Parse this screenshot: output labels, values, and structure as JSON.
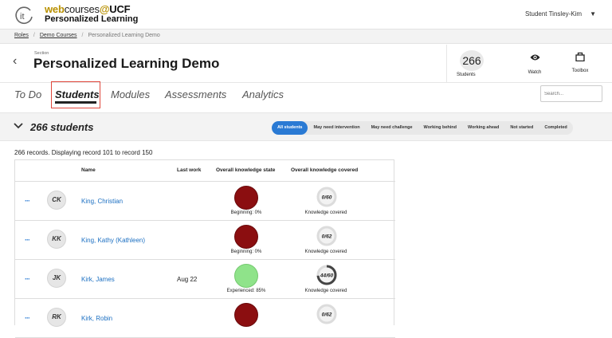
{
  "topbar": {
    "brand_web": "web",
    "brand_courses": "courses",
    "brand_at": "@",
    "brand_ucf": "UCF",
    "brand_sub": "Personalized Learning",
    "user": "Student Tinsley-Kim"
  },
  "breadcrumb": [
    "Roles",
    "Demo Courses",
    "Personalized Learning Demo"
  ],
  "header": {
    "section_label": "Section",
    "title": "Personalized Learning Demo",
    "students_count": "266",
    "students_label": "Students",
    "watch_label": "Watch",
    "toolbox_label": "Toolbox"
  },
  "tabs": [
    {
      "label": "To Do"
    },
    {
      "label": "Students"
    },
    {
      "label": "Modules"
    },
    {
      "label": "Assessments"
    },
    {
      "label": "Analytics"
    }
  ],
  "search": {
    "placeholder": "Search..."
  },
  "student_bar": {
    "title": "266 students",
    "filters": [
      "All students",
      "May need intervention",
      "May need challenge",
      "Working behind",
      "Working ahead",
      "Not started",
      "Completed"
    ]
  },
  "records_text": "266 records. Displaying record 101 to record 150",
  "table": {
    "headers": [
      "Name",
      "Last work",
      "Overall knowledge state",
      "Overall knowledge covered"
    ],
    "rows": [
      {
        "initials": "CK",
        "name": "King, Christian",
        "last_work": "",
        "state_label": "Beginning: 0%",
        "state_color": "#8b0e10",
        "covered": "0/60",
        "covered_fraction": 0,
        "covered_label": "Knowledge covered"
      },
      {
        "initials": "KK",
        "name": "King, Kathy (Kathleen)",
        "last_work": "",
        "state_label": "Beginning: 0%",
        "state_color": "#8b0e10",
        "covered": "0/62",
        "covered_fraction": 0,
        "covered_label": "Knowledge covered"
      },
      {
        "initials": "JK",
        "name": "Kirk, James",
        "last_work": "Aug 22",
        "state_label": "Experienced: 85%",
        "state_color": "#8fe38a",
        "covered": "44/60",
        "covered_fraction": 0.733,
        "covered_label": "Knowledge covered"
      },
      {
        "initials": "RK",
        "name": "Kirk, Robin",
        "last_work": "",
        "state_label": "",
        "state_color": "#8b0e10",
        "covered": "0/62",
        "covered_fraction": 0,
        "covered_label": ""
      }
    ]
  },
  "colors": {
    "accent": "#2a7ad4",
    "highlight_box": "#e0473c",
    "beginning": "#8b0e10",
    "experienced": "#8fe38a"
  }
}
